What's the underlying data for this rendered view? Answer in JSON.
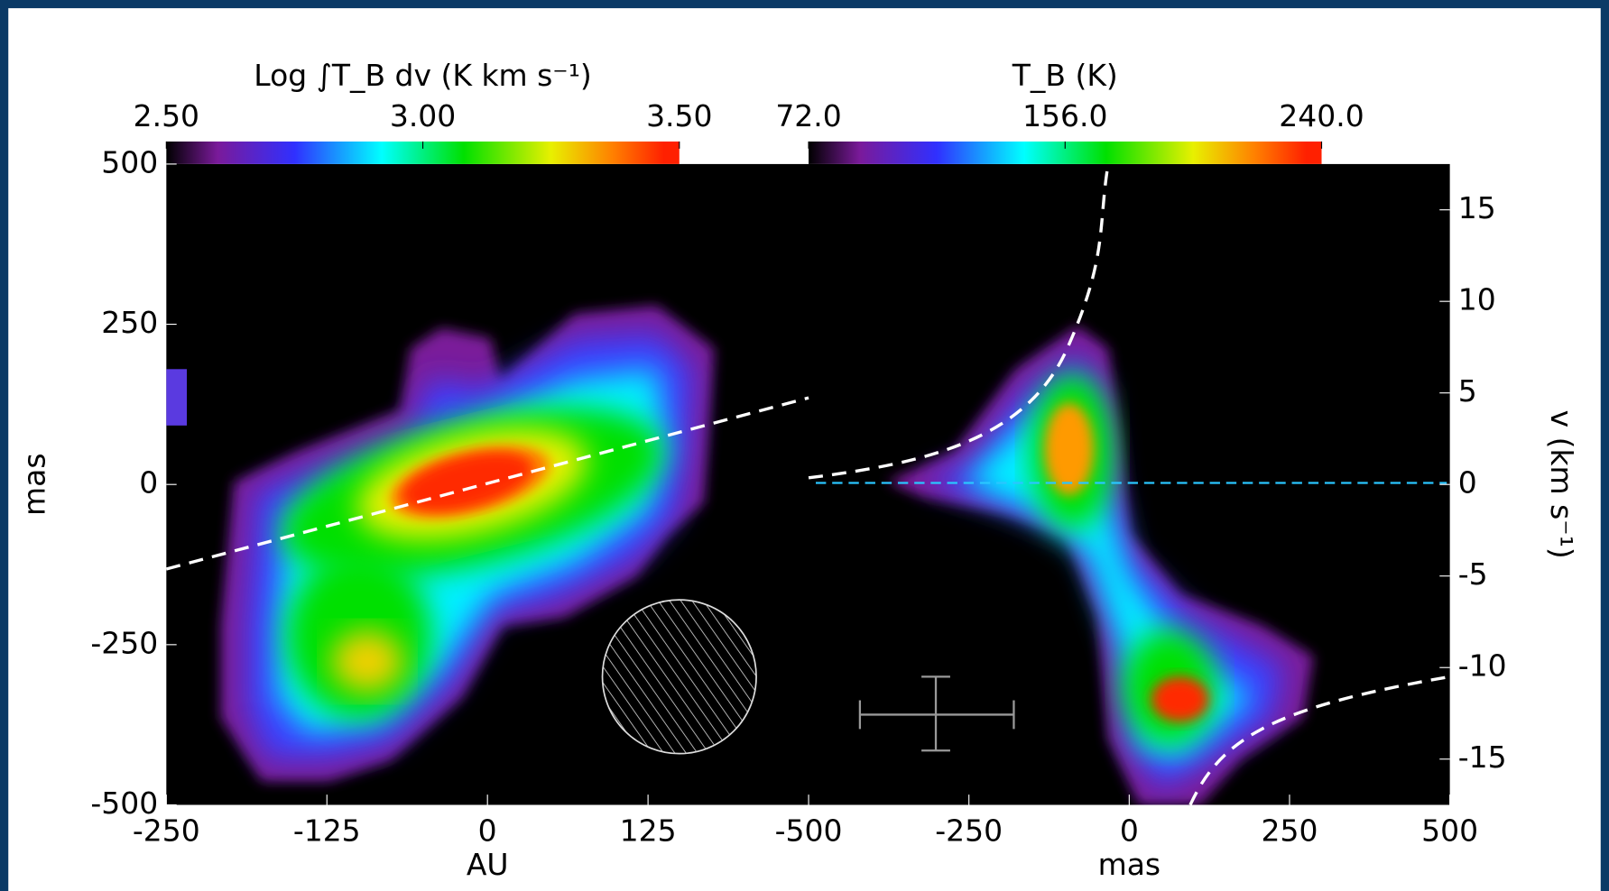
{
  "chart_data": [
    {
      "type": "map",
      "colorbar": {
        "label": "Log ∫T_B dv (K km s⁻¹)",
        "lim": [
          2.5,
          3.5
        ],
        "ticks": [
          {
            "value": 2.5,
            "label": "2.50"
          },
          {
            "value": 3,
            "label": "3.00"
          },
          {
            "value": 3.5,
            "label": "3.50"
          }
        ]
      },
      "xlabel": "AU",
      "ylabel": "mas",
      "xlim": [
        -250,
        250
      ],
      "xticks": [
        -250,
        -125,
        0,
        125
      ],
      "ylim": [
        -500,
        500
      ],
      "yticks": [
        -500,
        -250,
        0,
        250,
        500
      ]
    },
    {
      "type": "pv",
      "colorbar": {
        "label": "T_B (K)",
        "lim": [
          72,
          240
        ],
        "ticks": [
          {
            "value": 72,
            "label": "72.0"
          },
          {
            "value": 156,
            "label": "156.0"
          },
          {
            "value": 240,
            "label": "240.0"
          }
        ]
      },
      "xlabel": "mas",
      "ylabel": "v (km s⁻¹)",
      "xlim": [
        -500,
        500
      ],
      "xticks": [
        -500,
        -250,
        0,
        250,
        500
      ],
      "ylim": [
        -17.5,
        17.5
      ],
      "yticks": [
        -15,
        -10,
        -5,
        0,
        5,
        10,
        15
      ]
    }
  ]
}
